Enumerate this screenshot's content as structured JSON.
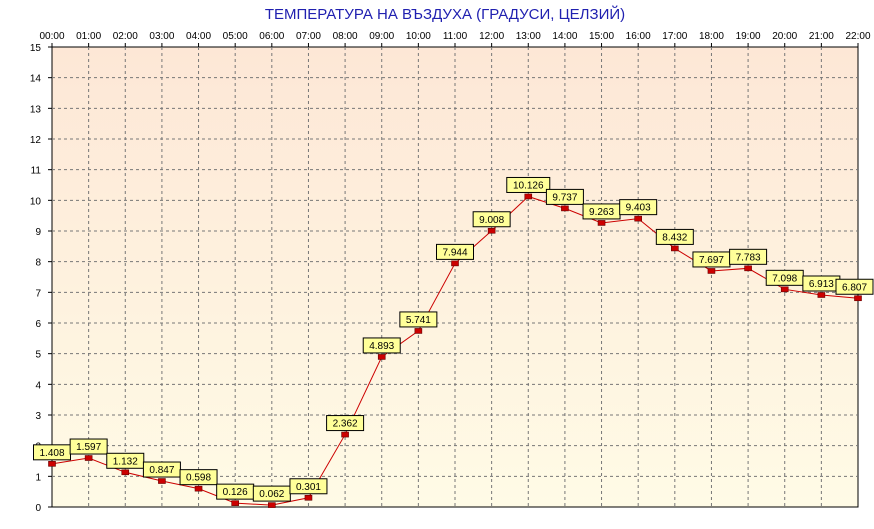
{
  "chart_data": {
    "type": "line",
    "title": "ТЕМПЕРАТУРА НА ВЪЗДУХА  (ГРАДУСИ, ЦЕЛЗИЙ)",
    "xlabel": "",
    "ylabel": "",
    "categories": [
      "00:00",
      "01:00",
      "02:00",
      "03:00",
      "04:00",
      "05:00",
      "06:00",
      "07:00",
      "08:00",
      "09:00",
      "10:00",
      "11:00",
      "12:00",
      "13:00",
      "14:00",
      "15:00",
      "16:00",
      "17:00",
      "18:00",
      "19:00",
      "20:00",
      "21:00",
      "22:00"
    ],
    "series": [
      {
        "values": [
          1.408,
          1.597,
          1.132,
          0.847,
          0.598,
          0.126,
          0.062,
          0.301,
          2.362,
          4.893,
          5.741,
          7.944,
          9.008,
          10.126,
          9.737,
          9.263,
          9.403,
          8.432,
          7.697,
          7.783,
          7.098,
          6.913,
          6.807
        ],
        "labels": [
          "1.408",
          "1.597",
          "1.132",
          "0.847",
          "0.598",
          "0.126",
          "0.062",
          "0.301",
          "2.362",
          "4.893",
          "5.741",
          "7.944",
          "9.008",
          "10.126",
          "9.737",
          "9.263",
          "9.403",
          "8.432",
          "7.697",
          "7.783",
          "7.098",
          "6.913",
          "6.807"
        ],
        "color": "#cc0000"
      }
    ],
    "yticks": [
      "0",
      "1",
      "2",
      "3",
      "4",
      "5",
      "6",
      "7",
      "8",
      "9",
      "10",
      "11",
      "12",
      "13",
      "14",
      "15"
    ],
    "ylim": [
      0,
      15
    ],
    "grid": true,
    "colors": {
      "title": "#2020b0",
      "line": "#cc0000",
      "marker": "#cc0000",
      "label_fill": "#ffff99",
      "plot_bg_top": "#fde7d6",
      "plot_bg_bottom": "#fffbe6",
      "grid": "#777777"
    }
  }
}
